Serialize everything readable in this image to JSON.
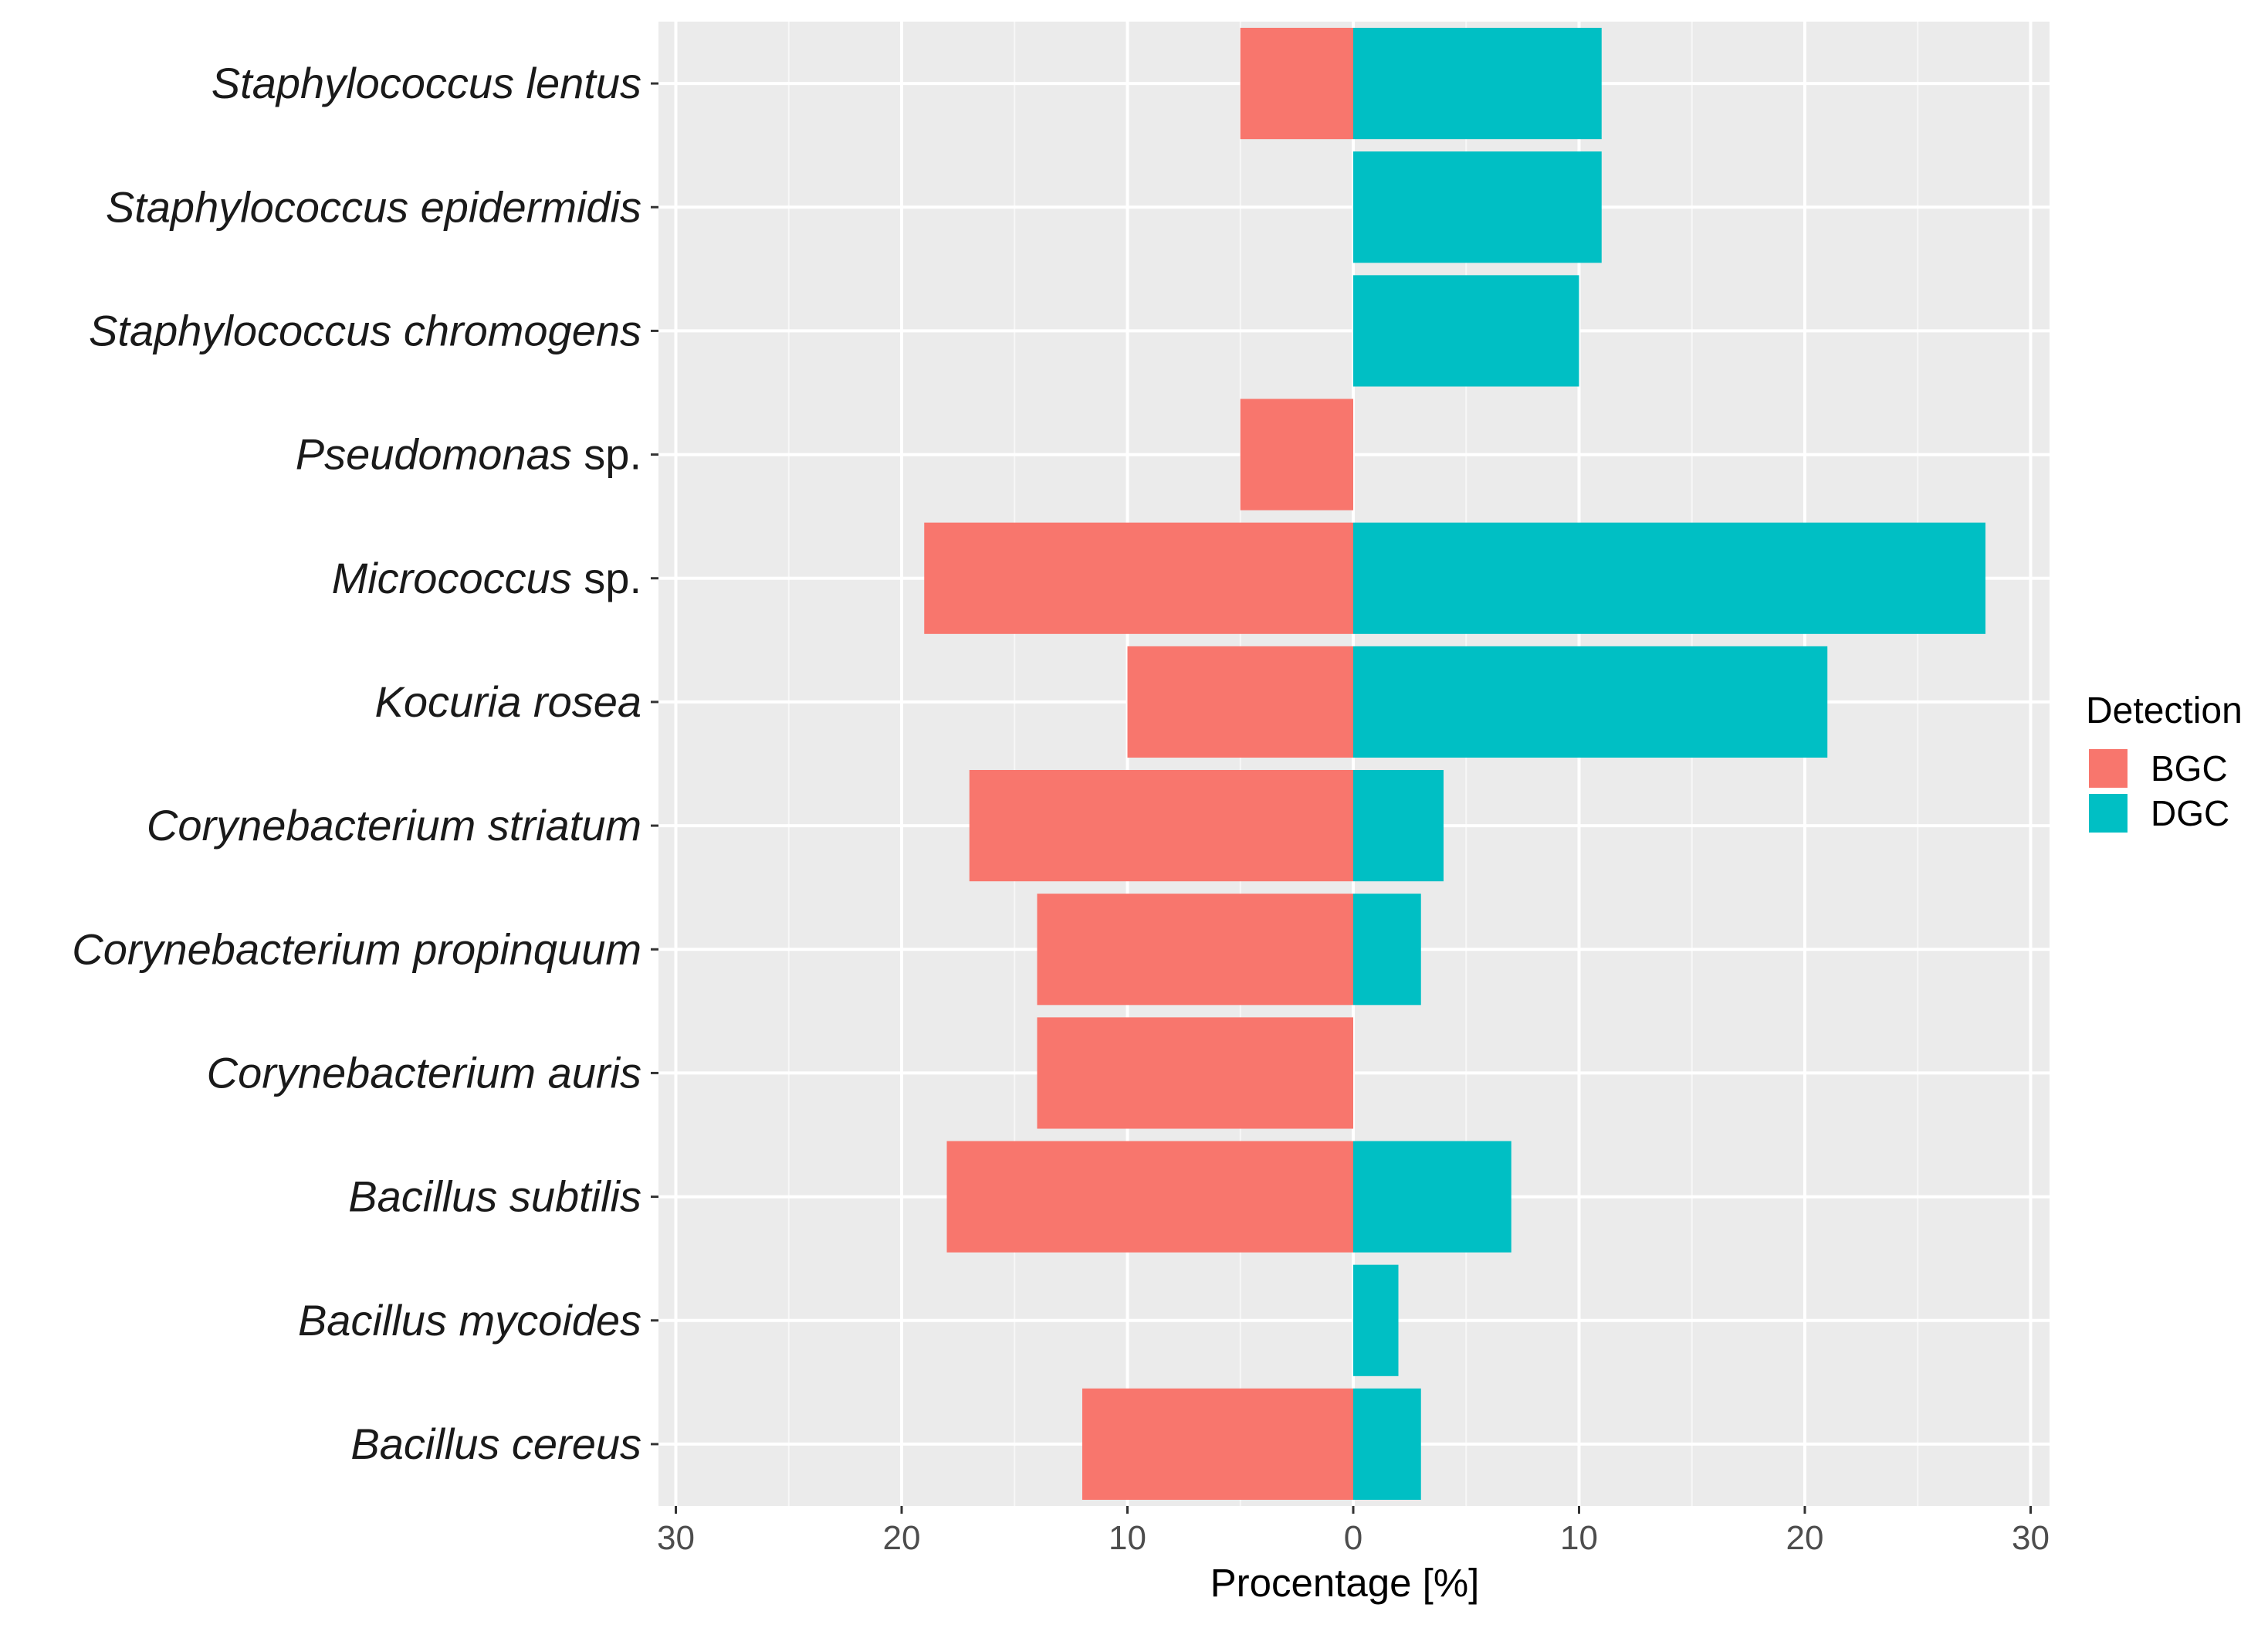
{
  "chart_data": {
    "type": "bar",
    "orientation": "horizontal-diverging",
    "categories": [
      {
        "italic": "Staphylococcus lentus",
        "suffix": ""
      },
      {
        "italic": "Staphylococcus epidermidis",
        "suffix": ""
      },
      {
        "italic": "Staphylococcus chromogens",
        "suffix": ""
      },
      {
        "italic": "Pseudomonas",
        "suffix": " sp."
      },
      {
        "italic": "Micrococcus",
        "suffix": " sp."
      },
      {
        "italic": "Kocuria rosea",
        "suffix": ""
      },
      {
        "italic": "Corynebacterium striatum",
        "suffix": ""
      },
      {
        "italic": "Corynebacterium propinquum",
        "suffix": ""
      },
      {
        "italic": "Corynebacterium auris",
        "suffix": ""
      },
      {
        "italic": "Bacillus subtilis",
        "suffix": ""
      },
      {
        "italic": "Bacillus mycoides",
        "suffix": ""
      },
      {
        "italic": "Bacillus cereus",
        "suffix": ""
      }
    ],
    "series": [
      {
        "name": "BGC",
        "color": "#F8766D",
        "direction": "left",
        "values": [
          5,
          0,
          0,
          5,
          19,
          10,
          17,
          14,
          14,
          18,
          0,
          12
        ]
      },
      {
        "name": "DGC",
        "color": "#00BFC4",
        "direction": "right",
        "values": [
          11,
          11,
          10,
          0,
          28,
          21,
          4,
          3,
          0,
          7,
          2,
          3
        ]
      }
    ],
    "xlim": [
      -30.5,
      30.5
    ],
    "xticks": [
      -30,
      -20,
      -10,
      0,
      10,
      20,
      30
    ],
    "xtick_labels": [
      "30",
      "20",
      "10",
      "0",
      "10",
      "20",
      "30"
    ],
    "xlabel": "Procentage [%]",
    "ylabel": "",
    "legend": {
      "title": "Detection",
      "entries": [
        "BGC",
        "DGC"
      ],
      "placement": "right"
    },
    "grid": true,
    "panel_background": "#EBEBEB"
  }
}
